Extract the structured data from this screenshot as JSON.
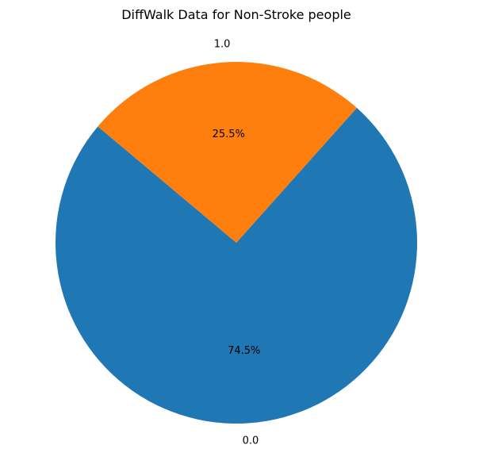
{
  "chart_data": {
    "type": "pie",
    "title": "DiffWalk Data for Non-Stroke people",
    "categories": [
      "0.0",
      "1.0"
    ],
    "values": [
      74.5,
      25.5
    ],
    "value_labels": [
      "74.5%",
      "25.5%"
    ],
    "colors": [
      "#1f77b4",
      "#ff7f0e"
    ],
    "start_angle_deg": 140,
    "direction": "counterclockwise",
    "legend": "none"
  }
}
